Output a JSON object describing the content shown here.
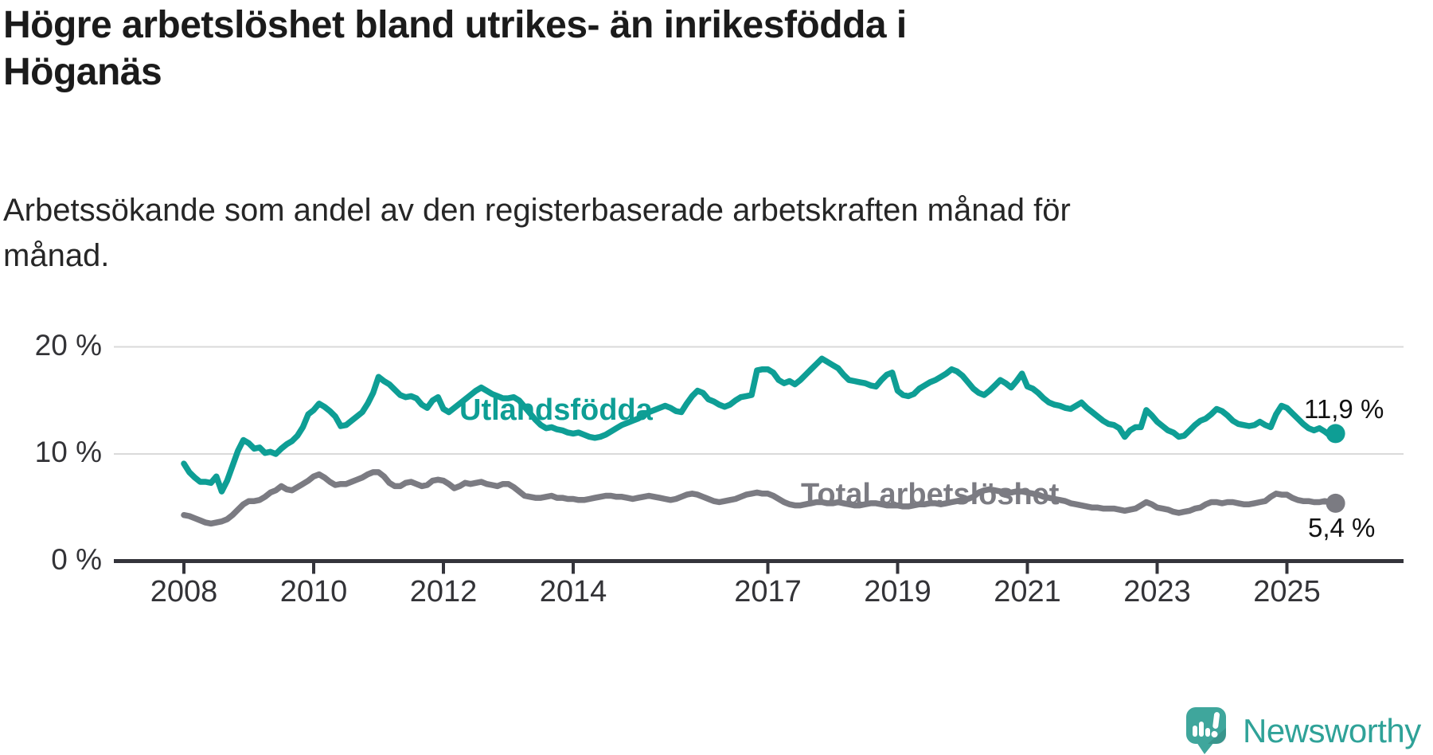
{
  "header": {
    "title_line1": "Högre arbetslöshet bland utrikes- än inrikesfödda i",
    "title_line2": "Höganäs",
    "subtitle_line1": "Arbetssökande som andel av den registerbaserade arbetskraften månad för",
    "subtitle_line2": "månad."
  },
  "footer": {
    "brand": "Newsworthy",
    "logo_icon": "newsworthy-speech-bubble-bar-chart-icon",
    "brand_color": "#2FA298",
    "logo_bubble_color": "#3FA69C"
  },
  "chart_data": {
    "type": "line",
    "title": "Högre arbetslöshet bland utrikes- än inrikesfödda i Höganäs",
    "subtitle": "Arbetssökande som andel av den registerbaserade arbetskraften månad för månad.",
    "x_start_year": 2008,
    "frequency": "monthly",
    "x_ticks": [
      2008,
      2010,
      2012,
      2014,
      2017,
      2019,
      2021,
      2023,
      2025
    ],
    "y_ticks": [
      {
        "value": 0,
        "label": "0 %"
      },
      {
        "value": 10,
        "label": "10 %"
      },
      {
        "value": 20,
        "label": "20 %"
      }
    ],
    "ylim": [
      0,
      21.5
    ],
    "grid": "horizontal",
    "legend_position": "inline-labels",
    "colors": {
      "axis": "#34343B",
      "gridline": "#DADADA",
      "tick_text": "#333337",
      "value_text": "#111111"
    },
    "series": [
      {
        "name": "Utlandsfödda",
        "color": "#0E9E95",
        "end_label": "11,9 %",
        "end_value": 11.9,
        "values": [
          9.1,
          8.3,
          7.8,
          7.4,
          7.4,
          7.3,
          7.9,
          6.5,
          7.5,
          8.9,
          10.3,
          11.3,
          11.0,
          10.5,
          10.6,
          10.1,
          10.2,
          10.0,
          10.5,
          10.9,
          11.2,
          11.7,
          12.5,
          13.7,
          14.1,
          14.7,
          14.4,
          14.0,
          13.5,
          12.6,
          12.7,
          13.1,
          13.5,
          13.9,
          14.7,
          15.7,
          17.2,
          16.8,
          16.5,
          16.0,
          15.5,
          15.3,
          15.4,
          15.2,
          14.6,
          14.3,
          15.0,
          15.3,
          14.2,
          13.9,
          14.3,
          14.7,
          15.1,
          15.5,
          15.9,
          16.2,
          15.9,
          15.6,
          15.4,
          15.2,
          15.2,
          15.3,
          15.0,
          14.4,
          13.8,
          13.2,
          12.7,
          12.4,
          12.5,
          12.3,
          12.2,
          12.0,
          11.9,
          12.0,
          11.8,
          11.6,
          11.5,
          11.6,
          11.8,
          12.1,
          12.4,
          12.7,
          12.9,
          13.1,
          13.3,
          13.6,
          13.9,
          14.1,
          14.3,
          14.5,
          14.3,
          14.0,
          13.9,
          14.7,
          15.4,
          15.9,
          15.7,
          15.1,
          14.9,
          14.6,
          14.4,
          14.6,
          15.0,
          15.3,
          15.4,
          15.5,
          17.8,
          17.9,
          17.9,
          17.6,
          16.9,
          16.6,
          16.8,
          16.5,
          16.9,
          17.4,
          17.9,
          18.4,
          18.9,
          18.6,
          18.3,
          18.0,
          17.4,
          16.9,
          16.8,
          16.7,
          16.6,
          16.4,
          16.3,
          16.9,
          17.4,
          17.6,
          15.9,
          15.5,
          15.4,
          15.6,
          16.1,
          16.4,
          16.7,
          16.9,
          17.2,
          17.5,
          17.9,
          17.7,
          17.3,
          16.7,
          16.1,
          15.7,
          15.5,
          15.9,
          16.4,
          16.9,
          16.6,
          16.2,
          16.8,
          17.5,
          16.3,
          16.1,
          15.7,
          15.2,
          14.8,
          14.6,
          14.5,
          14.3,
          14.2,
          14.5,
          14.8,
          14.3,
          13.9,
          13.5,
          13.1,
          12.8,
          12.7,
          12.4,
          11.6,
          12.2,
          12.5,
          12.5,
          14.1,
          13.6,
          13.0,
          12.6,
          12.2,
          12.0,
          11.6,
          11.7,
          12.2,
          12.7,
          13.1,
          13.3,
          13.7,
          14.2,
          14.0,
          13.6,
          13.1,
          12.8,
          12.7,
          12.6,
          12.7,
          13.0,
          12.7,
          12.5,
          13.7,
          14.5,
          14.3,
          13.8,
          13.3,
          12.8,
          12.4,
          12.2,
          12.4,
          12.1,
          11.7,
          11.9
        ]
      },
      {
        "name": "Total arbetslöshet",
        "color": "#7B7B82",
        "end_label": "5,4 %",
        "end_value": 5.4,
        "values": [
          4.3,
          4.2,
          4.0,
          3.8,
          3.6,
          3.5,
          3.6,
          3.7,
          3.9,
          4.3,
          4.8,
          5.3,
          5.6,
          5.6,
          5.7,
          6.0,
          6.4,
          6.6,
          7.0,
          6.7,
          6.6,
          6.9,
          7.2,
          7.5,
          7.9,
          8.1,
          7.8,
          7.4,
          7.1,
          7.2,
          7.2,
          7.4,
          7.6,
          7.8,
          8.1,
          8.3,
          8.3,
          7.9,
          7.3,
          7.0,
          7.0,
          7.3,
          7.4,
          7.2,
          7.0,
          7.1,
          7.5,
          7.6,
          7.5,
          7.2,
          6.8,
          7.0,
          7.3,
          7.2,
          7.3,
          7.4,
          7.2,
          7.1,
          7.0,
          7.2,
          7.2,
          6.9,
          6.5,
          6.1,
          6.0,
          5.9,
          5.9,
          6.0,
          6.1,
          5.9,
          5.9,
          5.8,
          5.8,
          5.7,
          5.7,
          5.8,
          5.9,
          6.0,
          6.1,
          6.1,
          6.0,
          6.0,
          5.9,
          5.8,
          5.9,
          6.0,
          6.1,
          6.0,
          5.9,
          5.8,
          5.7,
          5.8,
          6.0,
          6.2,
          6.3,
          6.2,
          6.0,
          5.8,
          5.6,
          5.5,
          5.6,
          5.7,
          5.8,
          6.0,
          6.2,
          6.3,
          6.4,
          6.3,
          6.3,
          6.1,
          5.8,
          5.5,
          5.3,
          5.2,
          5.2,
          5.3,
          5.4,
          5.5,
          5.5,
          5.4,
          5.4,
          5.5,
          5.4,
          5.3,
          5.2,
          5.2,
          5.3,
          5.4,
          5.4,
          5.3,
          5.2,
          5.2,
          5.2,
          5.1,
          5.1,
          5.2,
          5.3,
          5.3,
          5.4,
          5.4,
          5.3,
          5.4,
          5.5,
          5.6,
          5.7,
          5.8,
          6.0,
          6.4,
          6.6,
          6.7,
          6.6,
          6.5,
          6.4,
          6.4,
          6.5,
          6.5,
          6.4,
          6.3,
          6.2,
          6.0,
          5.9,
          5.8,
          5.7,
          5.6,
          5.4,
          5.3,
          5.2,
          5.1,
          5.0,
          5.0,
          4.9,
          4.9,
          4.9,
          4.8,
          4.7,
          4.8,
          4.9,
          5.2,
          5.5,
          5.3,
          5.0,
          4.9,
          4.8,
          4.6,
          4.5,
          4.6,
          4.7,
          4.9,
          5.0,
          5.3,
          5.5,
          5.5,
          5.4,
          5.5,
          5.5,
          5.4,
          5.3,
          5.3,
          5.4,
          5.5,
          5.6,
          6.0,
          6.3,
          6.2,
          6.2,
          5.9,
          5.7,
          5.6,
          5.6,
          5.5,
          5.5,
          5.6,
          5.5,
          5.4
        ]
      }
    ]
  }
}
